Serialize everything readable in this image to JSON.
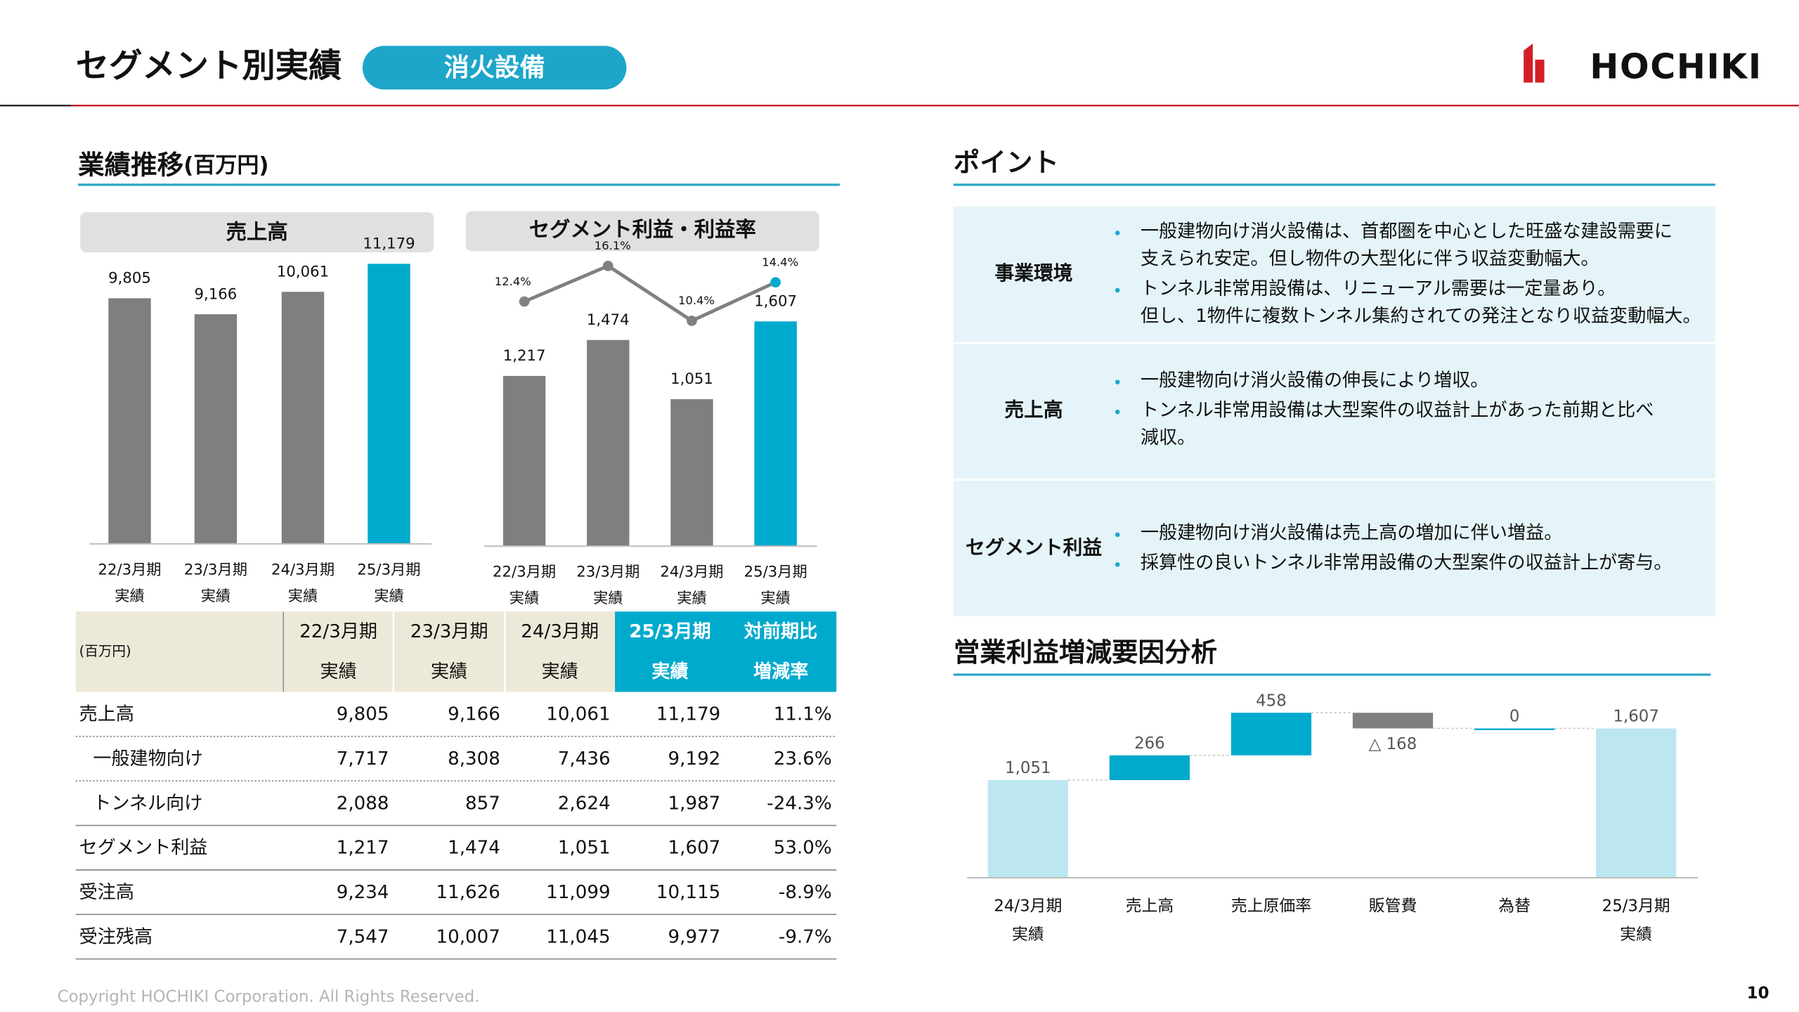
{
  "header": {
    "title": "セグメント別実績",
    "badge": "消火設備",
    "logo": "HOCHIKI"
  },
  "headings": {
    "performance": "業績推移",
    "performance_unit": "(百万円)",
    "points": "ポイント",
    "analysis": "営業利益増減要因分析"
  },
  "chart_data": [
    {
      "type": "bar",
      "title": "売上高",
      "categories": [
        [
          "22/3月期",
          "実績"
        ],
        [
          "23/3月期",
          "実績"
        ],
        [
          "24/3月期",
          "実績"
        ],
        [
          "25/3月期",
          "実績"
        ]
      ],
      "series": [
        {
          "values": [
            9805,
            9166,
            10061,
            11179
          ],
          "value_labels": [
            "9,805",
            "9,166",
            "10,061",
            "11,179"
          ],
          "colors": [
            "#7f7f7f",
            "#7f7f7f",
            "#7f7f7f",
            "#00aacd"
          ]
        }
      ],
      "ylim": [
        0,
        12000
      ]
    },
    {
      "type": "bar-line",
      "title": "セグメント利益・利益率",
      "categories": [
        [
          "22/3月期",
          "実績"
        ],
        [
          "23/3月期",
          "実績"
        ],
        [
          "24/3月期",
          "実績"
        ],
        [
          "25/3月期",
          "実績"
        ]
      ],
      "series": [
        {
          "values": [
            1217,
            1474,
            1051,
            1607
          ],
          "value_labels": [
            "1,217",
            "1,474",
            "1,051",
            "1,607"
          ],
          "colors": [
            "#7f7f7f",
            "#7f7f7f",
            "#7f7f7f",
            "#00aacd"
          ]
        },
        {
          "type": "line",
          "axis": "y2",
          "values": [
            12.4,
            16.1,
            10.4,
            14.4
          ],
          "value_labels": [
            "12.4%",
            "16.1%",
            "10.4%",
            "14.4%"
          ],
          "color": "#808080",
          "marker_colors": [
            "#808080",
            "#808080",
            "#808080",
            "#00aacd"
          ]
        }
      ],
      "ylim": [
        0,
        2100
      ],
      "y2lim": [
        -13,
        17.5
      ]
    },
    {
      "type": "waterfall",
      "categories": [
        [
          "24/3月期",
          "実績"
        ],
        [
          "売上高"
        ],
        [
          "売上原価率"
        ],
        [
          "販管費"
        ],
        [
          "為替"
        ],
        [
          "25/3月期",
          "実績"
        ]
      ],
      "values": [
        1051,
        266,
        458,
        -168,
        0,
        1607
      ],
      "value_labels": [
        "1,051",
        "266",
        "458",
        "△ 168",
        "0",
        "1,607"
      ],
      "measure": [
        "total",
        "relative",
        "relative",
        "relative",
        "relative",
        "total"
      ],
      "colors": {
        "total": "#bde7f0",
        "increase": "#00aacd",
        "decrease": "#7f7f7f"
      },
      "ylim": [
        0,
        2000
      ]
    }
  ],
  "table": {
    "unit": "(百万円)",
    "columns": [
      [
        "22/3月期",
        "実績"
      ],
      [
        "23/3月期",
        "実績"
      ],
      [
        "24/3月期",
        "実績"
      ],
      [
        "25/3月期",
        "実績"
      ],
      [
        "対前期比",
        "増減率"
      ]
    ],
    "rows": [
      [
        "売上高",
        "9,805",
        "9,166",
        "10,061",
        "11,179",
        "11.1%"
      ],
      [
        "一般建物向け",
        "7,717",
        "8,308",
        "7,436",
        "9,192",
        "23.6%"
      ],
      [
        "トンネル向け",
        "2,088",
        "857",
        "2,624",
        "1,987",
        "-24.3%"
      ],
      [
        "セグメント利益",
        "1,217",
        "1,474",
        "1,051",
        "1,607",
        "53.0%"
      ],
      [
        "受注高",
        "9,234",
        "11,626",
        "11,099",
        "10,115",
        "-8.9%"
      ],
      [
        "受注残高",
        "7,547",
        "10,007",
        "11,045",
        "9,977",
        "-9.7%"
      ]
    ]
  },
  "points": {
    "sections": [
      {
        "label": "事業環境",
        "bullets": [
          [
            "一般建物向け消火設備は、首都圏を中心とした旺盛な建設需要に",
            "支えられ安定。但し物件の大型化に伴う収益変動幅大。"
          ],
          [
            "トンネル非常用設備は、リニューアル需要は一定量あり。",
            "但し、1物件に複数トンネル集約されての発注となり収益変動幅大。"
          ]
        ]
      },
      {
        "label": "売上高",
        "bullets": [
          [
            "一般建物向け消火設備の伸長により増収。"
          ],
          [
            "トンネル非常用設備は大型案件の収益計上があった前期と比べ",
            "減収。"
          ]
        ]
      },
      {
        "label": "セグメント利益",
        "bullets": [
          [
            "一般建物向け消火設備は売上高の増加に伴い増益。"
          ],
          [
            "採算性の良いトンネル非常用設備の大型案件の収益計上が寄与。"
          ]
        ]
      }
    ]
  },
  "footer": {
    "copyright": "Copyright HOCHIKI Corporation. All Rights Reserved.",
    "page": "10"
  }
}
